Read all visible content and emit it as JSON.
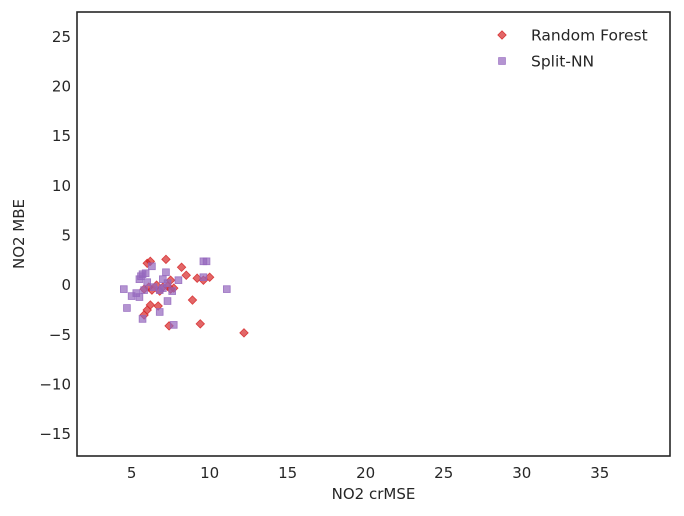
{
  "chart_data": {
    "type": "scatter",
    "xlabel": "NO2 crMSE",
    "ylabel": "NO2 MBE",
    "xlim": [
      1.5,
      39.5
    ],
    "ylim": [
      -17.2,
      27.5
    ],
    "xticks": [
      5,
      10,
      15,
      20,
      25,
      30,
      35
    ],
    "yticks": [
      -15,
      -10,
      -5,
      0,
      5,
      10,
      15,
      20,
      25
    ],
    "xtick_labels": [
      "5",
      "10",
      "15",
      "20",
      "25",
      "30",
      "35"
    ],
    "ytick_labels": [
      "−15",
      "−10",
      "−5",
      "0",
      "5",
      "10",
      "15",
      "20",
      "25"
    ],
    "grid": false,
    "legend_position": "top-right",
    "series": [
      {
        "name": "Random Forest",
        "marker": "diamond",
        "color": "#d62728",
        "points": [
          [
            6.0,
            2.2
          ],
          [
            6.2,
            2.4
          ],
          [
            7.2,
            2.6
          ],
          [
            5.8,
            -0.4
          ],
          [
            6.1,
            -0.2
          ],
          [
            6.3,
            -0.5
          ],
          [
            6.6,
            0.0
          ],
          [
            6.8,
            -0.6
          ],
          [
            7.0,
            -0.2
          ],
          [
            7.3,
            -0.1
          ],
          [
            7.5,
            -0.4
          ],
          [
            7.7,
            -0.3
          ],
          [
            7.5,
            0.5
          ],
          [
            8.2,
            1.8
          ],
          [
            8.5,
            1.0
          ],
          [
            9.2,
            0.7
          ],
          [
            9.6,
            0.5
          ],
          [
            10.0,
            0.8
          ],
          [
            8.9,
            -1.5
          ],
          [
            6.2,
            -2.0
          ],
          [
            6.0,
            -2.5
          ],
          [
            6.7,
            -2.1
          ],
          [
            5.8,
            -3.0
          ],
          [
            7.4,
            -4.1
          ],
          [
            9.4,
            -3.9
          ],
          [
            12.2,
            -4.8
          ]
        ]
      },
      {
        "name": "Split-NN",
        "marker": "square",
        "color": "#9467bd",
        "points": [
          [
            4.5,
            -0.4
          ],
          [
            4.7,
            -2.3
          ],
          [
            5.0,
            -1.1
          ],
          [
            5.3,
            -0.8
          ],
          [
            5.5,
            -1.2
          ],
          [
            5.6,
            0.9
          ],
          [
            5.7,
            1.1
          ],
          [
            5.5,
            0.6
          ],
          [
            5.9,
            1.2
          ],
          [
            6.0,
            0.3
          ],
          [
            6.3,
            1.9
          ],
          [
            5.8,
            -0.5
          ],
          [
            6.4,
            -0.2
          ],
          [
            6.8,
            -0.5
          ],
          [
            7.0,
            0.6
          ],
          [
            7.2,
            1.3
          ],
          [
            7.3,
            0.2
          ],
          [
            7.0,
            -0.3
          ],
          [
            7.6,
            -0.6
          ],
          [
            7.3,
            -1.6
          ],
          [
            8.0,
            0.5
          ],
          [
            6.8,
            -2.7
          ],
          [
            5.7,
            -3.4
          ],
          [
            7.7,
            -4.0
          ],
          [
            9.6,
            2.4
          ],
          [
            9.8,
            2.4
          ],
          [
            9.6,
            0.8
          ],
          [
            11.1,
            -0.4
          ]
        ]
      }
    ]
  }
}
